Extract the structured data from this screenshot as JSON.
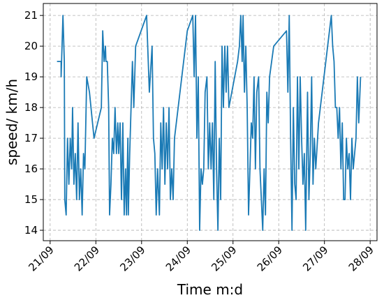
{
  "chart_data": {
    "type": "line",
    "xlabel": "Time m:d",
    "ylabel": "speed/ km/h",
    "x": [
      21.15,
      21.24,
      21.24,
      21.28,
      21.31,
      21.32,
      21.35,
      21.38,
      21.41,
      21.44,
      21.47,
      21.49,
      21.52,
      21.55,
      21.58,
      21.61,
      21.64,
      21.67,
      21.7,
      21.73,
      21.76,
      21.8,
      21.86,
      21.96,
      22.12,
      22.15,
      22.18,
      22.21,
      22.22,
      22.25,
      22.28,
      22.3,
      22.33,
      22.36,
      22.39,
      22.42,
      22.45,
      22.48,
      22.5,
      22.53,
      22.56,
      22.59,
      22.62,
      22.65,
      22.67,
      22.7,
      22.71,
      22.74,
      22.77,
      22.8,
      22.83,
      22.87,
      23.11,
      23.17,
      23.23,
      23.26,
      23.29,
      23.32,
      23.35,
      23.39,
      23.42,
      23.45,
      23.48,
      23.51,
      23.54,
      23.57,
      23.6,
      23.63,
      23.66,
      23.69,
      23.72,
      24.0,
      24.12,
      24.15,
      24.18,
      24.21,
      24.24,
      24.27,
      24.3,
      24.33,
      24.36,
      24.39,
      24.43,
      24.46,
      24.49,
      24.52,
      24.55,
      24.58,
      24.61,
      24.64,
      24.67,
      24.7,
      24.73,
      24.76,
      24.79,
      24.82,
      24.85,
      24.88,
      24.91,
      25.1,
      25.14,
      25.17,
      25.2,
      25.22,
      25.25,
      25.28,
      25.31,
      25.34,
      25.37,
      25.4,
      25.43,
      25.46,
      25.49,
      25.52,
      25.56,
      25.59,
      25.62,
      25.65,
      25.68,
      25.71,
      25.74,
      25.77,
      25.8,
      25.89,
      26.17,
      26.2,
      26.23,
      26.26,
      26.29,
      26.32,
      26.35,
      26.38,
      26.41,
      26.44,
      26.47,
      26.5,
      26.53,
      26.56,
      26.59,
      26.63,
      26.66,
      26.69,
      26.72,
      26.75,
      26.78,
      26.81,
      26.87,
      27.15,
      27.18,
      27.21,
      27.24,
      27.27,
      27.3,
      27.33,
      27.36,
      27.39,
      27.42,
      27.45,
      27.48,
      27.51,
      27.54,
      27.57,
      27.6,
      27.63,
      27.66,
      27.69,
      27.72,
      27.75,
      27.79
    ],
    "values": [
      19.5,
      19.5,
      19,
      21,
      19.5,
      15,
      14.5,
      17,
      15.5,
      17,
      16,
      18,
      15.5,
      16.5,
      15,
      17.5,
      15,
      16,
      14.5,
      16.5,
      16,
      19,
      18.5,
      17,
      18,
      20.5,
      19.5,
      20,
      19.5,
      19.5,
      18,
      14.5,
      15.5,
      17,
      16.5,
      18,
      16.5,
      17.5,
      16.5,
      17.5,
      15,
      17.5,
      14.5,
      16,
      14.5,
      17,
      14.5,
      16.5,
      18,
      19.5,
      18,
      20,
      21,
      18.5,
      20,
      17,
      16.5,
      14.5,
      16,
      14.5,
      17.5,
      16,
      18,
      15.5,
      17.5,
      16,
      18,
      15,
      16,
      15,
      17,
      20.5,
      21,
      19,
      21,
      17,
      19,
      14,
      16,
      15.5,
      16,
      18.5,
      19,
      16,
      17.5,
      16,
      17.5,
      15,
      19.5,
      16,
      14,
      17,
      15,
      20,
      18,
      20,
      18.5,
      20,
      18,
      19.5,
      20,
      21,
      19.5,
      21,
      18.5,
      20,
      18,
      14.5,
      16,
      17.5,
      17,
      19,
      16,
      18.5,
      19,
      16,
      15,
      14,
      16,
      14.5,
      18.5,
      17.5,
      19,
      20,
      20.5,
      18.5,
      21,
      17,
      14,
      18,
      15.5,
      15,
      19,
      16,
      19,
      17,
      15.5,
      16.5,
      14,
      18.5,
      15,
      16.5,
      19,
      15.5,
      17,
      16,
      17.5,
      21,
      20,
      19.5,
      18,
      18,
      17,
      18,
      16,
      17.5,
      15,
      15,
      17,
      16,
      16.5,
      15,
      17,
      16,
      16.5,
      17,
      19,
      17.5,
      19
    ],
    "color": "#1a7ab5",
    "xlim": [
      20.85,
      28.15
    ],
    "xticks": [
      {
        "value": 21,
        "label": "21/09"
      },
      {
        "value": 22,
        "label": "22/09"
      },
      {
        "value": 23,
        "label": "23/09"
      },
      {
        "value": 24,
        "label": "24/09"
      },
      {
        "value": 25,
        "label": "25/09"
      },
      {
        "value": 26,
        "label": "26/09"
      },
      {
        "value": 27,
        "label": "27/09"
      },
      {
        "value": 28,
        "label": "28/09"
      }
    ],
    "ylim": [
      13.66,
      21.39
    ],
    "yticks": [
      14,
      15,
      16,
      17,
      18,
      19,
      20,
      21
    ],
    "grid": true
  }
}
